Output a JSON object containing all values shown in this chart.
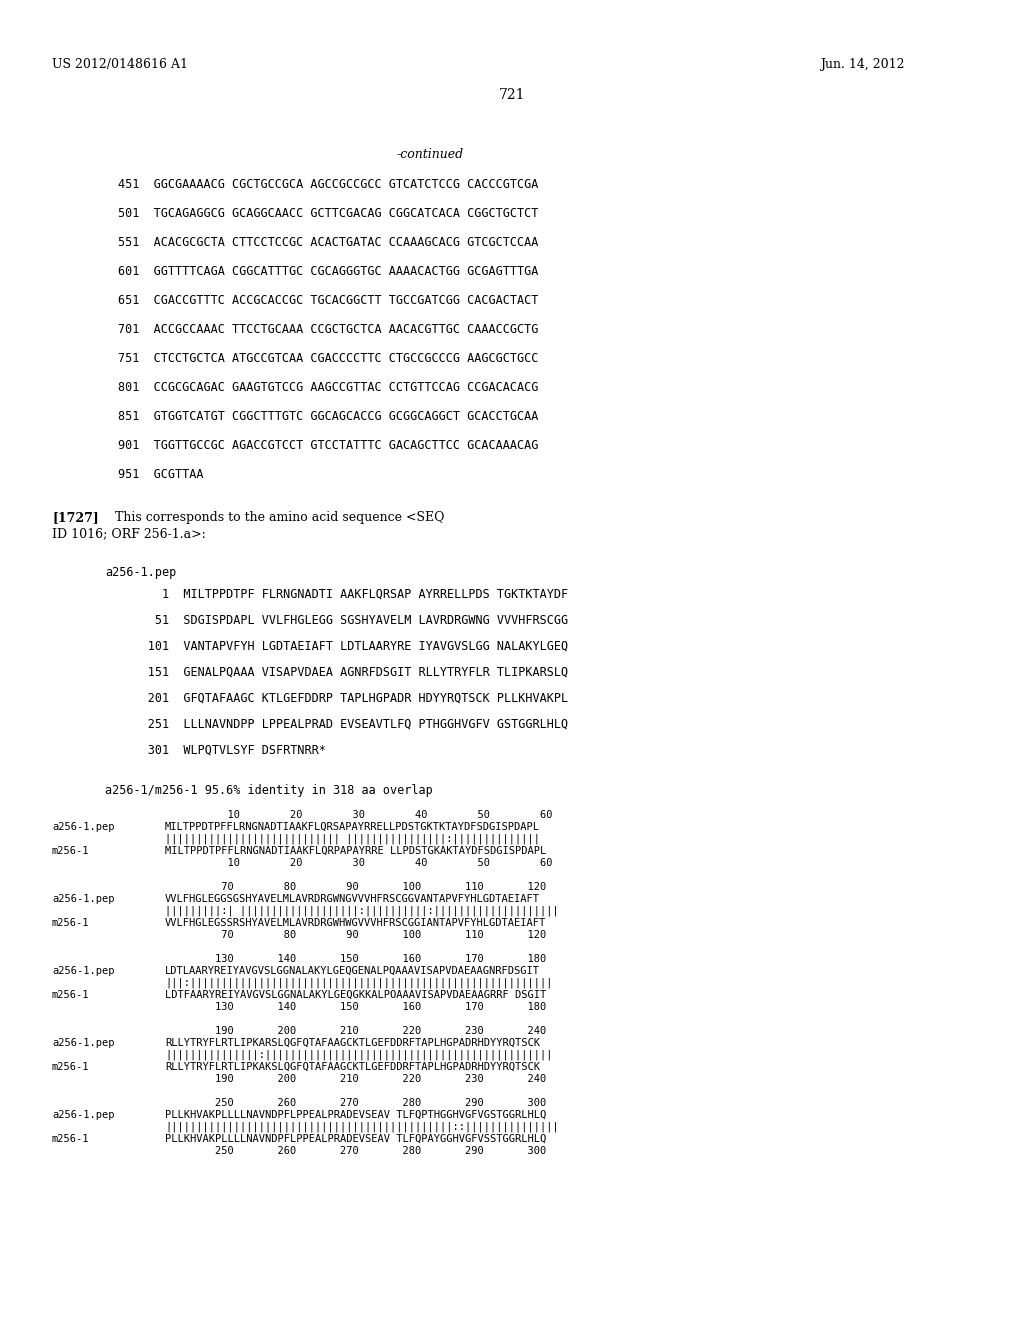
{
  "header_left": "US 2012/0148616 A1",
  "header_right": "Jun. 14, 2012",
  "page_number": "721",
  "continued_label": "-continued",
  "sequence_lines": [
    "451  GGCGAAAACG CGCTGCCGCA AGCCGCCGCC GTCATCTCCG CACCCGTCGA",
    "501  TGCAGAGGCG GCAGGCAACC GCTTCGACAG CGGCATCACA CGGCTGCTCT",
    "551  ACACGCGCTA CTTCCTCCGC ACACTGATAC CCAAAGCACG GTCGCTCCAA",
    "601  GGTTTTCAGA CGGCATTTGC CGCAGGGTGC AAAACACTGG GCGAGTTTGA",
    "651  CGACCGTTTC ACCGCACCGC TGCACGGCTT TGCCGATCGG CACGACTACT",
    "701  ACCGCCAAAC TTCCTGCAAA CCGCTGCTCA AACACGTTGC CAAACCGCTG",
    "751  CTCCTGCTCA ATGCCGTCAA CGACCCCTTC CTGCCGCCCG AAGCGCTGCC",
    "801  CCGCGCAGAC GAAGTGTCCG AAGCCGTTAC CCTGTTCCAG CCGACACACG",
    "851  GTGGTCATGT CGGCTTTGTC GGCAGCACCG GCGGCAGGCT GCACCTGCAA",
    "901  TGGTTGCCGC AGACCGTCCT GTCCTATTTC GACAGCTTCC GCACAAACAG",
    "951  GCGTTAA"
  ],
  "para_bold": "[1727]",
  "para_normal": "   This corresponds to the amino acid sequence <SEQ",
  "para_line2": "ID 1016; ORF 256-1.a>:",
  "pep_label": "a256-1.pep",
  "pep_lines": [
    "        1  MILTPPDTPF FLRNGNADTI AAKFLQRSAP AYRRELLPDS TGKTKTAYDF",
    "       51  SDGISPDAPL VVLFHGLEGG SGSHYAVELM LAVRDRGWNG VVVHFRSCGG",
    "      101  VANTAPVFYH LGDTAEIAFT LDTLAARYRE IYAVGVSLGG NALAKYLGEQ",
    "      151  GENALPQAAA VISAPVDAEA AGNRFDSGIT RLLYTRYFLR TLIPKARSLQ",
    "      201  GFQTAFAAGC KTLGEFDDRP TAPLHGPADR HDYYRQTSCK PLLKHVAKPL",
    "      251  LLLNAVNDPP LPPEALPRAD EVSEAVTLFQ PTHGGHVGFV GSTGGRLHLQ",
    "      301  WLPQTVLSYF DSFRTNRR*"
  ],
  "identity_line": "a256-1/m256-1 95.6% identity in 318 aa overlap",
  "alignment_blocks": [
    {
      "top_nums": "          10        20        30        40        50        60",
      "label_a": "a256-1.pep",
      "seq_a": "MILTPPDTPFFLRNGNADTIAAKFLQRSAPAYRRELLPDSTGKTKTAYDFSDGISPDAPL",
      "pipes": "|||||||||||||||||||||||||||| |||||||||||||||||||:||||||||||||||",
      "label_m": "m256-1",
      "seq_m": "MILTPPDTPFFLRNGNADTIAAKFLQRPAPAYRRE LLPDSTGKAKTAYDFSDGISPDAPL",
      "bot_nums": "          10        20        30        40        50        60"
    },
    {
      "top_nums": "         70        80        90       100       110       120",
      "label_a": "a256-1.pep",
      "seq_a": "VVLFHGLEGGSGSHYAVELMLAVRDRGWNGVVVHFRSCGGVANTAPVFYHLGDTAEIAFT",
      "pipes": "|||||||||:| |||||||||||||||||||:||||||||||:|||||||||||||||||||",
      "label_m": "m256-1",
      "seq_m": "VVLFHGLEGSSRSHYAVELMLAVRDRGWHWGVVVHFRSCGGIANTAPVFYHLGDTAEIAFT",
      "bot_nums": "         70        80        90       100       110       120"
    },
    {
      "top_nums": "        130       140       150       160       170       180",
      "label_a": "a256-1.pep",
      "seq_a": "LDTLAARYREIYAVGVSLGGNALAKYLGEQGENALPQAAAVISAPVDAEAAGNRFDSGIT",
      "pipes": "|||:||||||||||||||||||||||||||||||||||||||||||||||||||||||||||",
      "label_m": "m256-1",
      "seq_m": "LDTFAARYREIYAVGVSLGGNALAKYLGEQGKKALPOAAAVISAPVDAEAAGRRF DSGIT",
      "bot_nums": "        130       140       150       160       170       180"
    },
    {
      "top_nums": "        190       200       210       220       230       240",
      "label_a": "a256-1.pep",
      "seq_a": "RLLYTRYFLRTLIPKARSLQGFQTAFAAGCKTLGEFDDRFTAPLHGPADRHDYYRQTSCK",
      "pipes": "|||||||||||||||:||||||||||||||||||||||||||||||||||||||||||||||",
      "label_m": "m256-1",
      "seq_m": "RLLYTRYFLRTLIPKAKSLQGFQTAFAAGCKTLGEFDDRFTAPLHGPADRHDYYRQTSCK",
      "bot_nums": "        190       200       210       220       230       240"
    },
    {
      "top_nums": "        250       260       270       280       290       300",
      "label_a": "a256-1.pep",
      "seq_a": "PLLKHVAKPLLLLNAVNDPFLPPEALPRADEVSEAV TLFQPTHGGHVGFVGSTGGRLHLQ",
      "pipes": "||||||||||||||||||||||||||||||||||||||||||||||::|||||||||||||||",
      "label_m": "m256-1",
      "seq_m": "PLLKHVAKPLLLLNAVNDPFLPPEALPRADEVSEAV TLFQPAYGGHVGFVSSTGGRLHLQ",
      "bot_nums": "        250       260       270       280       290       300"
    }
  ],
  "bg_color": "#ffffff",
  "text_color": "#000000"
}
